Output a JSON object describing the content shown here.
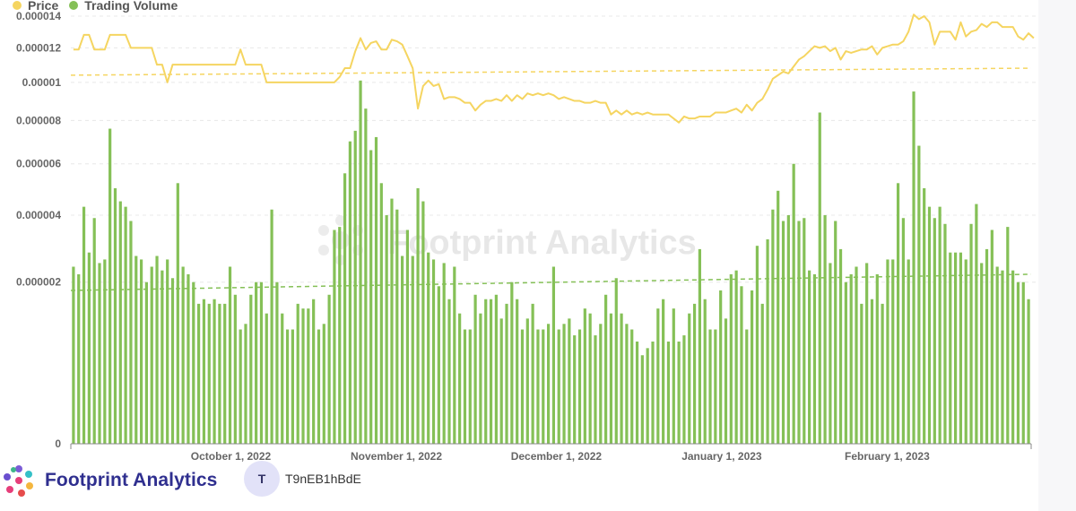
{
  "colors": {
    "price": "#f5d561",
    "volume": "#85c057",
    "watermark": "#cfcfcf",
    "brand": "#2f2f8f"
  },
  "legend": [
    {
      "label": "Price",
      "color": "#f5d561"
    },
    {
      "label": "Trading Volume",
      "color": "#85c057"
    }
  ],
  "footer": {
    "brand": "Footprint Analytics",
    "avatar_letter": "T",
    "user": "T9nEB1hBdE"
  },
  "watermark": {
    "text": "Footprint Analytics",
    "icon": "footprint-logo-icon"
  },
  "chart_data": {
    "type": "bar",
    "xlabel": "",
    "ylabel": "",
    "x_start": "2022-09-01",
    "x_end": "2023-02-28",
    "x_ticks": [
      "October 1, 2022",
      "November 1, 2022",
      "December 1, 2022",
      "January 1, 2023",
      "February 1, 2023"
    ],
    "y_ticks": [
      "0",
      "0.000002",
      "0.000004",
      "0.000006",
      "0.000008",
      "0.00001",
      "0.000012",
      "0.000014"
    ],
    "ylim": [
      0,
      1.4e-05
    ],
    "y_scale": "sqrt",
    "grid": true,
    "legend_position": "top-left",
    "series": [
      {
        "name": "Trading Volume",
        "type": "bar",
        "values": [
          2.4,
          2.2,
          4.3,
          2.8,
          3.9,
          2.5,
          2.6,
          7.6,
          5.0,
          4.5,
          4.3,
          3.8,
          2.7,
          2.6,
          2.0,
          2.4,
          2.7,
          2.3,
          2.6,
          2.1,
          5.2,
          2.4,
          2.2,
          2.0,
          1.5,
          1.6,
          1.5,
          1.6,
          1.5,
          1.5,
          2.4,
          1.7,
          1.0,
          1.1,
          1.7,
          2.0,
          2.0,
          1.3,
          4.2,
          2.0,
          1.3,
          1.0,
          1.0,
          1.5,
          1.4,
          1.4,
          1.6,
          1.0,
          1.1,
          1.7,
          3.5,
          3.6,
          5.6,
          7.0,
          7.5,
          10.1,
          8.6,
          6.6,
          7.2,
          5.2,
          4.0,
          4.6,
          4.2,
          2.7,
          3.5,
          2.7,
          5.0,
          4.5,
          2.8,
          2.6,
          1.9,
          2.5,
          1.6,
          2.4,
          1.3,
          1.0,
          1.0,
          1.7,
          1.3,
          1.6,
          1.6,
          1.7,
          1.2,
          1.5,
          2.0,
          1.6,
          1.0,
          1.2,
          1.5,
          1.0,
          1.0,
          1.1,
          2.4,
          1.0,
          1.1,
          1.2,
          0.9,
          1.0,
          1.4,
          1.3,
          0.9,
          1.1,
          1.7,
          1.3,
          2.1,
          1.3,
          1.1,
          1.0,
          0.8,
          0.6,
          0.7,
          0.8,
          1.4,
          1.6,
          0.8,
          1.4,
          0.8,
          0.9,
          1.3,
          1.5,
          2.9,
          1.6,
          1.0,
          1.0,
          1.8,
          1.2,
          2.2,
          2.3,
          1.9,
          1.0,
          1.8,
          3.0,
          1.5,
          3.2,
          4.2,
          4.9,
          3.8,
          4.0,
          6.0,
          3.8,
          3.9,
          2.3,
          2.2,
          8.4,
          4.0,
          2.5,
          3.8,
          2.9,
          2.0,
          2.2,
          2.4,
          1.5,
          2.5,
          1.6,
          2.2,
          1.5,
          2.6,
          2.6,
          5.2,
          3.9,
          2.6,
          9.5,
          6.8,
          5.0,
          4.3,
          3.9,
          4.3,
          3.7,
          2.8,
          2.8,
          2.8,
          2.6,
          3.7,
          4.4,
          2.5,
          2.9,
          3.5,
          2.4,
          2.3,
          3.6,
          2.3,
          2.0,
          2.0,
          1.6
        ],
        "unit_note": ""
      },
      {
        "name": "Price",
        "type": "line",
        "values": [
          1.19e-05,
          1.19e-05,
          1.28e-05,
          1.28e-05,
          1.19e-05,
          1.19e-05,
          1.19e-05,
          1.28e-05,
          1.28e-05,
          1.28e-05,
          1.28e-05,
          1.2e-05,
          1.2e-05,
          1.2e-05,
          1.2e-05,
          1.2e-05,
          1.1e-05,
          1.1e-05,
          1e-05,
          1.1e-05,
          1.1e-05,
          1.1e-05,
          1.1e-05,
          1.1e-05,
          1.1e-05,
          1.1e-05,
          1.1e-05,
          1.1e-05,
          1.1e-05,
          1.1e-05,
          1.1e-05,
          1.1e-05,
          1.19e-05,
          1.1e-05,
          1.1e-05,
          1.1e-05,
          1.1e-05,
          1e-05,
          1e-05,
          1e-05,
          1e-05,
          1e-05,
          1e-05,
          1e-05,
          1e-05,
          1e-05,
          1e-05,
          1e-05,
          1e-05,
          1e-05,
          1e-05,
          1.03e-05,
          1.08e-05,
          1.08e-05,
          1.18e-05,
          1.26e-05,
          1.19e-05,
          1.23e-05,
          1.24e-05,
          1.19e-05,
          1.19e-05,
          1.25e-05,
          1.24e-05,
          1.22e-05,
          1.15e-05,
          1.08e-05,
          8.6e-06,
          9.8e-06,
          1.01e-05,
          9.8e-06,
          9.9e-06,
          9.1e-06,
          9.2e-06,
          9.2e-06,
          9.1e-06,
          8.9e-06,
          8.9e-06,
          8.5e-06,
          8.8e-06,
          9e-06,
          9e-06,
          9.1e-06,
          9e-06,
          9.3e-06,
          9e-06,
          9.3e-06,
          9.1e-06,
          9.4e-06,
          9.3e-06,
          9.4e-06,
          9.3e-06,
          9.4e-06,
          9.3e-06,
          9.1e-06,
          9.2e-06,
          9.1e-06,
          9e-06,
          9e-06,
          8.9e-06,
          8.9e-06,
          9e-06,
          8.9e-06,
          8.9e-06,
          8.3e-06,
          8.5e-06,
          8.3e-06,
          8.5e-06,
          8.3e-06,
          8.4e-06,
          8.3e-06,
          8.4e-06,
          8.3e-06,
          8.3e-06,
          8.3e-06,
          8.3e-06,
          8.1e-06,
          7.9e-06,
          8.2e-06,
          8.1e-06,
          8.1e-06,
          8.2e-06,
          8.2e-06,
          8.2e-06,
          8.4e-06,
          8.4e-06,
          8.4e-06,
          8.5e-06,
          8.6e-06,
          8.4e-06,
          8.8e-06,
          8.5e-06,
          8.9e-06,
          9.1e-06,
          9.6e-06,
          1.02e-05,
          1.04e-05,
          1.06e-05,
          1.05e-05,
          1.09e-05,
          1.13e-05,
          1.15e-05,
          1.18e-05,
          1.21e-05,
          1.2e-05,
          1.21e-05,
          1.18e-05,
          1.2e-05,
          1.13e-05,
          1.18e-05,
          1.17e-05,
          1.18e-05,
          1.19e-05,
          1.19e-05,
          1.21e-05,
          1.16e-05,
          1.2e-05,
          1.21e-05,
          1.22e-05,
          1.22e-05,
          1.24e-05,
          1.3e-05,
          1.41e-05,
          1.38e-05,
          1.4e-05,
          1.36e-05,
          1.22e-05,
          1.3e-05,
          1.3e-05,
          1.3e-05,
          1.25e-05,
          1.36e-05,
          1.27e-05,
          1.3e-05,
          1.31e-05,
          1.35e-05,
          1.33e-05,
          1.36e-05,
          1.36e-05,
          1.33e-05,
          1.33e-05,
          1.33e-05,
          1.27e-05,
          1.25e-05,
          1.29e-05,
          1.26e-05
        ]
      }
    ],
    "trendlines": [
      {
        "series": "Price",
        "style": "dashed",
        "start": 1.04e-05,
        "end": 1.08e-05
      },
      {
        "series": "Trading Volume",
        "style": "dashed",
        "start": 1.8,
        "end": 2.2
      }
    ]
  }
}
